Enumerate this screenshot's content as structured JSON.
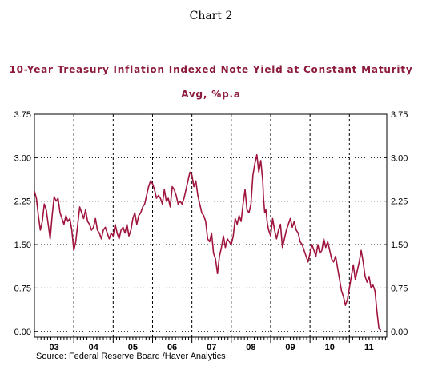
{
  "heading": "Chart 2",
  "source": "Source:  Federal Reserve Board /Haver Analytics",
  "chart_data": {
    "type": "line",
    "title": "10-Year Treasury Inflation Indexed Note Yield at Constant Maturity",
    "subtitle": "Avg, %p.a",
    "xlabel": "",
    "ylabel": "",
    "ylim": [
      -0.1,
      3.75
    ],
    "y_ticks": [
      "3.75",
      "3.00",
      "2.25",
      "1.50",
      "0.75",
      "0.00"
    ],
    "x_tick_labels": [
      "03",
      "04",
      "05",
      "06",
      "07",
      "08",
      "09",
      "10",
      "11"
    ],
    "grid": "dashed vertical at year boundaries, dotted horizontal at y ticks",
    "series": [
      {
        "color": "#a0153e",
        "x": [
          2003.0,
          2003.05,
          2003.1,
          2003.15,
          2003.2,
          2003.25,
          2003.3,
          2003.35,
          2003.4,
          2003.45,
          2003.5,
          2003.55,
          2003.6,
          2003.65,
          2003.7,
          2003.75,
          2003.8,
          2003.85,
          2003.9,
          2003.95,
          2004.0,
          2004.05,
          2004.1,
          2004.15,
          2004.2,
          2004.25,
          2004.3,
          2004.35,
          2004.4,
          2004.45,
          2004.5,
          2004.55,
          2004.6,
          2004.65,
          2004.7,
          2004.75,
          2004.8,
          2004.85,
          2004.9,
          2004.95,
          2005.0,
          2005.05,
          2005.1,
          2005.15,
          2005.2,
          2005.25,
          2005.3,
          2005.35,
          2005.4,
          2005.45,
          2005.5,
          2005.55,
          2005.6,
          2005.65,
          2005.7,
          2005.75,
          2005.8,
          2005.85,
          2005.9,
          2005.95,
          2006.0,
          2006.05,
          2006.1,
          2006.15,
          2006.2,
          2006.25,
          2006.3,
          2006.35,
          2006.4,
          2006.45,
          2006.5,
          2006.55,
          2006.6,
          2006.65,
          2006.7,
          2006.75,
          2006.8,
          2006.85,
          2006.9,
          2006.95,
          2007.0,
          2007.05,
          2007.1,
          2007.15,
          2007.2,
          2007.25,
          2007.3,
          2007.35,
          2007.4,
          2007.45,
          2007.5,
          2007.55,
          2007.6,
          2007.65,
          2007.7,
          2007.75,
          2007.8,
          2007.85,
          2007.9,
          2007.95,
          2008.0,
          2008.05,
          2008.1,
          2008.15,
          2008.2,
          2008.25,
          2008.3,
          2008.35,
          2008.4,
          2008.45,
          2008.5,
          2008.55,
          2008.6,
          2008.65,
          2008.7,
          2008.75,
          2008.8,
          2008.82,
          2008.85,
          2008.88,
          2008.92,
          2008.95,
          2009.0,
          2009.05,
          2009.1,
          2009.15,
          2009.2,
          2009.25,
          2009.3,
          2009.35,
          2009.4,
          2009.45,
          2009.5,
          2009.55,
          2009.6,
          2009.65,
          2009.7,
          2009.75,
          2009.8,
          2009.85,
          2009.9,
          2009.95,
          2010.0,
          2010.05,
          2010.1,
          2010.15,
          2010.2,
          2010.25,
          2010.3,
          2010.35,
          2010.4,
          2010.45,
          2010.5,
          2010.55,
          2010.6,
          2010.65,
          2010.7,
          2010.75,
          2010.8,
          2010.85,
          2010.9,
          2010.95,
          2011.0,
          2011.05,
          2011.1,
          2011.15,
          2011.2,
          2011.25,
          2011.3,
          2011.35,
          2011.4,
          2011.45,
          2011.5,
          2011.55,
          2011.6,
          2011.65,
          2011.7,
          2011.75,
          2011.8
        ],
        "y": [
          2.42,
          2.3,
          2.0,
          1.75,
          1.9,
          2.2,
          2.1,
          1.85,
          1.6,
          2.0,
          2.33,
          2.25,
          2.3,
          2.05,
          1.95,
          1.85,
          2.0,
          1.9,
          1.95,
          1.75,
          1.4,
          1.55,
          1.85,
          2.15,
          2.05,
          1.95,
          2.1,
          1.9,
          1.85,
          1.75,
          1.8,
          1.95,
          1.75,
          1.7,
          1.6,
          1.75,
          1.8,
          1.7,
          1.6,
          1.7,
          1.65,
          1.85,
          1.7,
          1.6,
          1.75,
          1.8,
          1.7,
          1.85,
          1.65,
          1.75,
          1.95,
          2.05,
          1.85,
          2.0,
          2.05,
          2.15,
          2.2,
          2.35,
          2.5,
          2.6,
          2.55,
          2.45,
          2.3,
          2.35,
          2.3,
          2.2,
          2.45,
          2.25,
          2.3,
          2.15,
          2.5,
          2.45,
          2.35,
          2.2,
          2.25,
          2.2,
          2.3,
          2.45,
          2.6,
          2.75,
          2.7,
          2.5,
          2.6,
          2.35,
          2.2,
          2.05,
          2.0,
          1.9,
          1.6,
          1.55,
          1.7,
          1.35,
          1.25,
          1.0,
          1.3,
          1.45,
          1.65,
          1.45,
          1.6,
          1.55,
          1.5,
          1.65,
          1.95,
          1.85,
          2.0,
          1.9,
          2.2,
          2.45,
          2.1,
          2.05,
          2.2,
          2.7,
          2.9,
          3.05,
          2.75,
          2.95,
          2.6,
          2.3,
          2.05,
          2.1,
          1.85,
          1.75,
          1.65,
          1.95,
          1.75,
          1.6,
          1.75,
          1.85,
          1.45,
          1.6,
          1.75,
          1.85,
          1.95,
          1.8,
          1.9,
          1.75,
          1.7,
          1.55,
          1.5,
          1.4,
          1.3,
          1.2,
          1.35,
          1.5,
          1.4,
          1.3,
          1.5,
          1.35,
          1.4,
          1.6,
          1.45,
          1.55,
          1.4,
          1.25,
          1.2,
          1.3,
          1.1,
          0.9,
          0.7,
          0.6,
          0.45,
          0.55,
          0.75,
          0.95,
          1.15,
          0.9,
          1.05,
          1.2,
          1.4,
          1.2,
          0.95,
          0.85,
          0.95,
          0.75,
          0.8,
          0.7,
          0.35,
          0.05,
          0.02
        ]
      }
    ]
  }
}
